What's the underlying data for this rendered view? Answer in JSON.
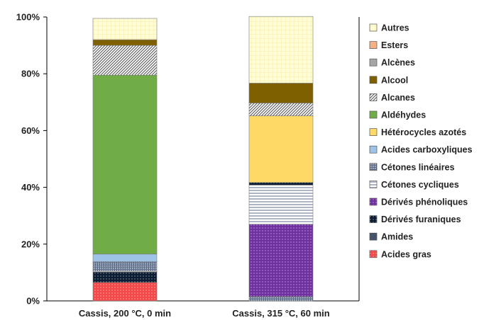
{
  "chart_data": {
    "type": "bar",
    "stacked": true,
    "categories": [
      "Cassis, 200 °C, 0 min",
      "Cassis, 315 °C, 60 min"
    ],
    "ylim": [
      0,
      100
    ],
    "ytick_labels": [
      "0%",
      "20%",
      "40%",
      "60%",
      "80%",
      "100%"
    ],
    "legend_position": "right",
    "series": [
      {
        "name": "Acides gras",
        "color": "#f24a4a",
        "pattern": "dots",
        "values": [
          6.5,
          0
        ]
      },
      {
        "name": "Amides",
        "color": "#44546a",
        "pattern": "solid",
        "values": [
          0,
          0
        ]
      },
      {
        "name": "Dérivés furaniques",
        "color": "#0b1c33",
        "pattern": "dots",
        "values": [
          3.7,
          0
        ]
      },
      {
        "name": "Cétones cycliques",
        "color": "#cfd6e4",
        "pattern": "hlines",
        "values": [
          0.3,
          0
        ]
      },
      {
        "name": "Dérivés phénoliques",
        "color": "#7030a0",
        "pattern": "dots",
        "values": [
          0,
          0
        ]
      },
      {
        "name": "Cétones linéaires",
        "color": "#8c9fb8",
        "pattern": "grid",
        "values": [
          3.3,
          1.5
        ]
      },
      {
        "name": "Dérivés phénoliques",
        "color": "#7030a0",
        "pattern": "dots",
        "values": [
          0,
          25.5
        ]
      },
      {
        "name": "Cétones cycliques",
        "color": "#d8dde8",
        "pattern": "hlines",
        "values": [
          0,
          13.8
        ]
      },
      {
        "name": "Dérivés furaniques",
        "color": "#0b1c33",
        "pattern": "dots",
        "values": [
          0,
          0.9
        ]
      },
      {
        "name": "Acides carboxyliques",
        "color": "#9dc3e6",
        "pattern": "solid",
        "values": [
          2.7,
          0
        ]
      },
      {
        "name": "Aldéhydes",
        "color": "#70ad47",
        "pattern": "solid",
        "values": [
          63.0,
          0
        ]
      },
      {
        "name": "Hétérocycles azotés",
        "color": "#ffd966",
        "pattern": "solid",
        "values": [
          0,
          23.5
        ]
      },
      {
        "name": "Alcanes",
        "color": "#b7bcc6",
        "pattern": "diag",
        "values": [
          10.5,
          4.5
        ]
      },
      {
        "name": "Alcool",
        "color": "#7f6000",
        "pattern": "solid",
        "values": [
          2.0,
          7.0
        ]
      },
      {
        "name": "Alcènes",
        "color": "#a6a6a6",
        "pattern": "solid",
        "values": [
          0,
          0
        ]
      },
      {
        "name": "Esters",
        "color": "#f4b183",
        "pattern": "solid",
        "values": [
          0,
          0
        ]
      },
      {
        "name": "Autres",
        "color": "#fffbcc",
        "pattern": "check",
        "values": [
          7.5,
          23.5
        ]
      }
    ],
    "legend": [
      {
        "name": "Autres",
        "color": "#fffbcc",
        "pattern": "check"
      },
      {
        "name": "Esters",
        "color": "#f4b183",
        "pattern": "solid"
      },
      {
        "name": "Alcènes",
        "color": "#a6a6a6",
        "pattern": "solid"
      },
      {
        "name": "Alcool",
        "color": "#7f6000",
        "pattern": "solid"
      },
      {
        "name": "Alcanes",
        "color": "#b7bcc6",
        "pattern": "diag"
      },
      {
        "name": "Aldéhydes",
        "color": "#70ad47",
        "pattern": "solid"
      },
      {
        "name": "Hétérocycles azotés",
        "color": "#ffd966",
        "pattern": "solid"
      },
      {
        "name": "Acides carboxyliques",
        "color": "#9dc3e6",
        "pattern": "solid"
      },
      {
        "name": "Cétones linéaires",
        "color": "#8c9fb8",
        "pattern": "grid"
      },
      {
        "name": "Cétones cycliques",
        "color": "#d8dde8",
        "pattern": "hlines"
      },
      {
        "name": "Dérivés phénoliques",
        "color": "#7030a0",
        "pattern": "dots"
      },
      {
        "name": "Dérivés furaniques",
        "color": "#0b1c33",
        "pattern": "dots"
      },
      {
        "name": "Amides",
        "color": "#44546a",
        "pattern": "solid"
      },
      {
        "name": "Acides gras",
        "color": "#f24a4a",
        "pattern": "dots"
      }
    ]
  }
}
